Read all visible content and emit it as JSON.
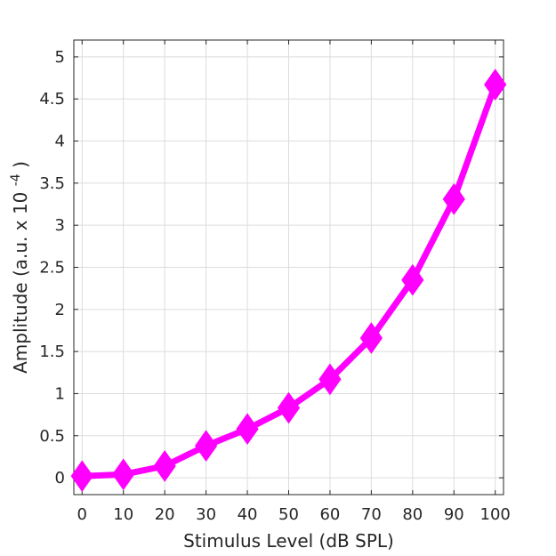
{
  "chart_data": {
    "type": "line",
    "title": "",
    "xlabel": "Stimulus Level (dB SPL)",
    "ylabel": {
      "prefix": "Amplitude (a.u. x 10",
      "exponent": "-4",
      "suffix": ")"
    },
    "xlim": [
      -2,
      102
    ],
    "ylim": [
      -0.2,
      5.2
    ],
    "xticks": [
      0,
      10,
      20,
      30,
      40,
      50,
      60,
      70,
      80,
      90,
      100
    ],
    "xtick_labels": [
      "0",
      "10",
      "20",
      "30",
      "40",
      "50",
      "60",
      "70",
      "80",
      "90",
      "100"
    ],
    "yticks": [
      0,
      0.5,
      1,
      1.5,
      2,
      2.5,
      3,
      3.5,
      4,
      4.5,
      5
    ],
    "ytick_labels": [
      "0",
      "0.5",
      "1",
      "1.5",
      "2",
      "2.5",
      "3",
      "3.5",
      "4",
      "4.5",
      "5"
    ],
    "grid": true,
    "series": [
      {
        "color": "#ff00ff",
        "marker": "diamond",
        "x": [
          0,
          10,
          20,
          30,
          40,
          50,
          60,
          70,
          80,
          90,
          100
        ],
        "y": [
          0.02,
          0.04,
          0.14,
          0.38,
          0.58,
          0.83,
          1.17,
          1.66,
          2.35,
          3.31,
          4.67
        ]
      }
    ]
  }
}
